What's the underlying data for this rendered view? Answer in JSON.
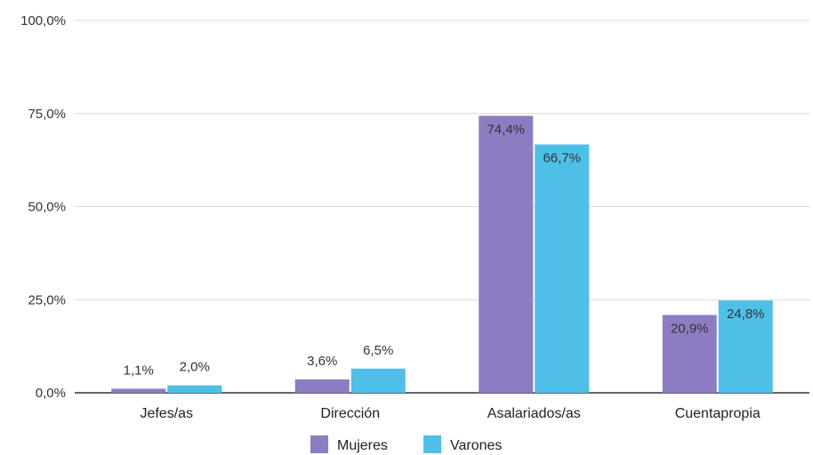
{
  "chart_data": {
    "type": "bar",
    "title": "",
    "xlabel": "",
    "ylabel": "",
    "categories": [
      "Jefes/as",
      "Dirección",
      "Asalariados/as",
      "Cuentapropia"
    ],
    "series": [
      {
        "name": "Mujeres",
        "color": "#8e7cc3",
        "values": [
          1.1,
          3.6,
          74.4,
          20.9
        ],
        "labels": [
          "1,1%",
          "3,6%",
          "74,4%",
          "20,9%"
        ]
      },
      {
        "name": "Varones",
        "color": "#4ec0e8",
        "values": [
          2.0,
          6.5,
          66.7,
          24.8
        ],
        "labels": [
          "2,0%",
          "6,5%",
          "66,7%",
          "24,8%"
        ]
      }
    ],
    "ylim": [
      0,
      100
    ],
    "yticks": [
      0,
      25,
      50,
      75,
      100
    ],
    "ytick_labels": [
      "0,0%",
      "25,0%",
      "50,0%",
      "75,0%",
      "100,0%"
    ],
    "grid": true,
    "legend_position": "bottom"
  }
}
